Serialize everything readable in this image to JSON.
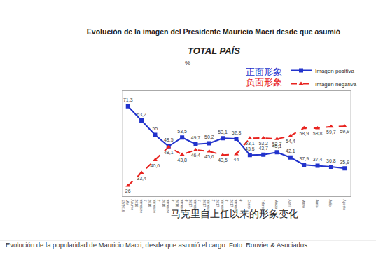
{
  "chart_data": {
    "type": "line",
    "title": "Evolución de la imagen del Presidente Mauricio Macri desde que asumió",
    "subtitle": "TOTAL PAÍS",
    "y_label": "%",
    "annotations": [
      "正面形象",
      "负面形象",
      "马克里自上任以来的形象变化"
    ],
    "caption": "Evolución de la popularidad de Mauricio Macri, desde que asumió el cargo. Foto: Rouvier & Asociados.",
    "categories": [
      "Asume MM 12/2015",
      "1° trimestre 2016",
      "2° trimestre 2016",
      "3° trimestre 2016",
      "4° trimestre 2016",
      "1° trimestre 2017",
      "2° trimestre 2017",
      "3° trimestre 2017",
      "4° trimestre 2017",
      "Enero",
      "Febrero",
      "Marzo",
      "Abril",
      "Mayo",
      "Junio",
      "Julio",
      "Agosto"
    ],
    "series": [
      {
        "name": "Imagen positiva",
        "color": "#2233cc",
        "marker": "square",
        "line_style": "solid",
        "values": [
          71.3,
          63.2,
          55,
          48.5,
          53.5,
          49.7,
          50.2,
          53.1,
          52.8,
          43.5,
          43.7,
          45.1,
          42.1,
          37.9,
          37.4,
          36.8,
          35.9
        ],
        "value_labels": [
          "71,3",
          "63,2",
          "55",
          "48,5",
          "53,5",
          "49,7",
          "50,2",
          "53,1",
          "52,8",
          "43,5",
          "43,7",
          "45,1",
          "42,1",
          "37,9",
          "37,4",
          "36,8",
          "35,9"
        ]
      },
      {
        "name": "Imagen negativa",
        "color": "#e8231f",
        "marker": "triangle",
        "line_style": "dash",
        "values": [
          26,
          33.4,
          40.6,
          48.1,
          43.8,
          46.4,
          45.6,
          43.5,
          44,
          53.1,
          53.2,
          52.7,
          54.4,
          58.9,
          58.8,
          59.7,
          59.9
        ],
        "value_labels": [
          "26",
          "33,4",
          "40,6",
          "48,1",
          "43,8",
          "46,4",
          "45,6",
          "43,5",
          "44",
          "53,1",
          "53,2",
          "52,7",
          "54,4",
          "58,9",
          "58,8",
          "59,7",
          "59,9"
        ]
      }
    ],
    "ylim": [
      20,
      80
    ],
    "yticks": [],
    "tick_labels": "x",
    "data_labels": true,
    "legend": "top right",
    "grid": false
  }
}
